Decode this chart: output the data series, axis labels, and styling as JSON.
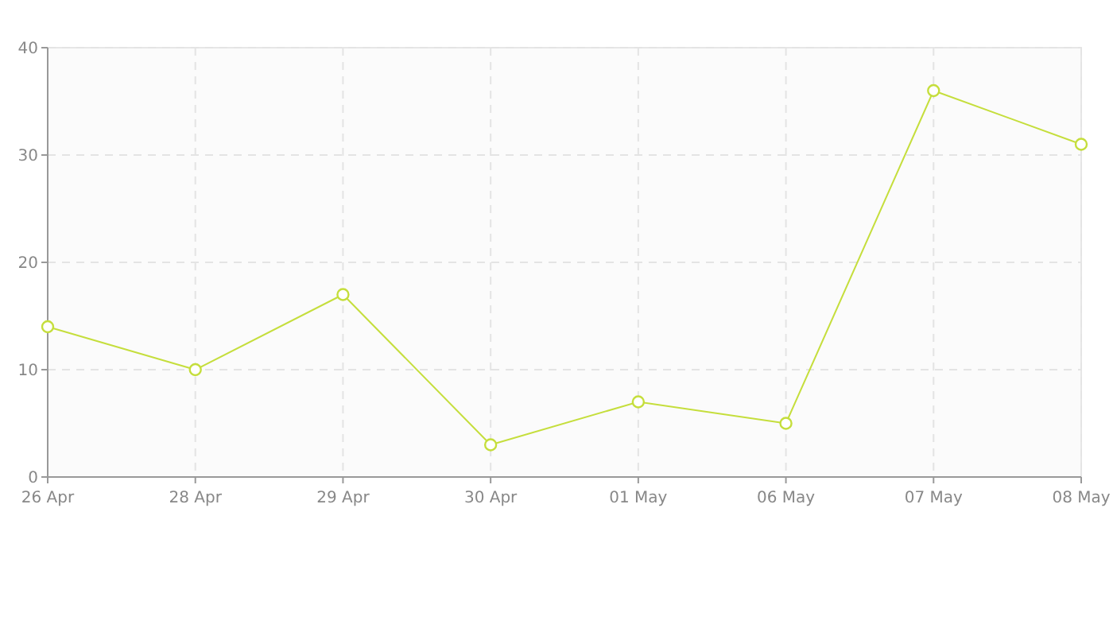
{
  "chart_data": {
    "type": "line",
    "categories": [
      "26 Apr",
      "28 Apr",
      "29 Apr",
      "30 Apr",
      "01 May",
      "06 May",
      "07 May",
      "08 May"
    ],
    "series": [
      {
        "color": "#c5de3c",
        "values": [
          14,
          10,
          17,
          3,
          7,
          5,
          36,
          31
        ]
      }
    ],
    "ylim": [
      0,
      40
    ],
    "yticks": [
      0,
      10,
      20,
      30,
      40
    ],
    "grid": true,
    "marker": "circle",
    "line_style": "solid"
  }
}
